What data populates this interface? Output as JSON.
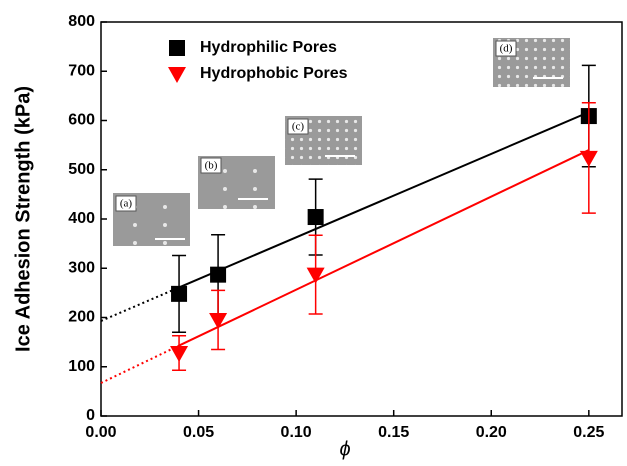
{
  "chart_data": {
    "type": "scatter",
    "ylabel": "Ice Adhesion Strength (kPa)",
    "xlabel": "ϕ",
    "xlim": [
      0,
      0.267
    ],
    "ylim": [
      0,
      800
    ],
    "xticks": [
      {
        "value": 0,
        "label": "0.00"
      },
      {
        "value": 0.05,
        "label": "0.05"
      },
      {
        "value": 0.1,
        "label": "0.10"
      },
      {
        "value": 0.15,
        "label": "0.15"
      },
      {
        "value": 0.2,
        "label": "0.20"
      },
      {
        "value": 0.25,
        "label": "0.25"
      }
    ],
    "yticks": [
      0,
      100,
      200,
      300,
      400,
      500,
      600,
      700,
      800
    ],
    "legend": "upper left",
    "series": [
      {
        "name": "Hydrophilic Pores",
        "color": "#000000",
        "marker": "square",
        "x": [
          0.04,
          0.06,
          0.11,
          0.25
        ],
        "values": [
          248,
          287,
          404,
          609
        ],
        "errors": [
          78,
          81,
          77,
          103
        ],
        "fit_x": [
          0,
          0.04,
          0.25
        ],
        "fit_values": [
          193,
          261,
          617
        ]
      },
      {
        "name": "Hydrophobic Pores",
        "color": "#ff0000",
        "marker": "triangle",
        "x": [
          0.04,
          0.06,
          0.11,
          0.25
        ],
        "values": [
          128,
          195,
          287,
          524
        ],
        "errors": [
          35,
          60,
          80,
          112
        ],
        "fit_x": [
          0,
          0.04,
          0.25
        ],
        "fit_values": [
          67,
          143,
          540
        ]
      }
    ],
    "insets": [
      "(a)",
      "(b)",
      "(c)",
      "(d)"
    ]
  }
}
